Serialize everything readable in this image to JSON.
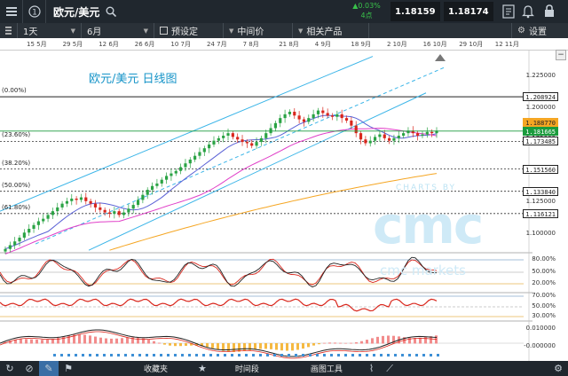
{
  "topbar": {
    "symbol": "欧元/美元",
    "change_pct": "▲0.03%",
    "change_points": "4点",
    "sell_price": "1.18159",
    "buy_price": "1.18174",
    "colors": {
      "sell": "#f0a019",
      "buy": "#2aa344",
      "change": "#39c14a"
    }
  },
  "toolbar": {
    "interval": "1天",
    "range": "6月",
    "preset": "预设定",
    "mid_price": "中间价",
    "related": "相关产品",
    "settings": "设置"
  },
  "date_axis": [
    "15 5月",
    "29 5月",
    "12 6月",
    "26 6月",
    "10 7月",
    "24 7月",
    "7 8月",
    "21 8月",
    "4 9月",
    "18 9月",
    "2 10月",
    "16 10月",
    "29 10月",
    "12 11月"
  ],
  "chart": {
    "title": "欧元/美元 日线图",
    "watermark_small": "CHARTS BY",
    "watermark_brand": "cmc",
    "watermark_sub": "cmc markets",
    "fib_labels": [
      "(0.00%)",
      "(23.60%)",
      "(38.20%)",
      "(50.00%)",
      "(61.80%)"
    ],
    "y_ticks": [
      "1.225000",
      "1.200000",
      "1.175000",
      "1.150000",
      "1.125000",
      "1.100000"
    ],
    "price_tags": {
      "fib0": "1.208924",
      "orange": "1.188770",
      "current": "1.181665",
      "fib236": "1.173485",
      "fib382": "1.151560",
      "fib50": "1.133840",
      "fib618": "1.116121"
    },
    "stoch_ticks": [
      "80.00%",
      "50.00%",
      "20.00%"
    ],
    "rsi_ticks": [
      "70.00%",
      "50.00%",
      "30.00%"
    ],
    "macd_ticks": [
      "0.010000",
      "-0.000000"
    ]
  },
  "chart_data": {
    "type": "candlestick",
    "title": "欧元/美元 日线图",
    "ylim": [
      1.085,
      1.24
    ],
    "fib_levels": [
      {
        "label": "(0.00%)",
        "value": 1.208924
      },
      {
        "label": "(23.60%)",
        "value": 1.173485
      },
      {
        "label": "(38.20%)",
        "value": 1.15156
      },
      {
        "label": "(50.00%)",
        "value": 1.13384
      },
      {
        "label": "(61.80%)",
        "value": 1.116121
      }
    ],
    "current_price": 1.181665,
    "closes": [
      1.088,
      1.091,
      1.094,
      1.097,
      1.101,
      1.104,
      1.107,
      1.11,
      1.112,
      1.115,
      1.118,
      1.121,
      1.124,
      1.126,
      1.128,
      1.127,
      1.129,
      1.126,
      1.124,
      1.121,
      1.119,
      1.117,
      1.116,
      1.118,
      1.115,
      1.117,
      1.12,
      1.123,
      1.127,
      1.131,
      1.135,
      1.138,
      1.14,
      1.143,
      1.146,
      1.148,
      1.15,
      1.153,
      1.156,
      1.159,
      1.162,
      1.165,
      1.168,
      1.171,
      1.174,
      1.176,
      1.178,
      1.18,
      1.177,
      1.175,
      1.173,
      1.172,
      1.17,
      1.173,
      1.176,
      1.18,
      1.184,
      1.188,
      1.192,
      1.195,
      1.197,
      1.194,
      1.191,
      1.189,
      1.192,
      1.195,
      1.198,
      1.196,
      1.194,
      1.193,
      1.195,
      1.192,
      1.19,
      1.186,
      1.18,
      1.175,
      1.172,
      1.174,
      1.177,
      1.179,
      1.176,
      1.174,
      1.176,
      1.178,
      1.18,
      1.182,
      1.18,
      1.178,
      1.179,
      1.181,
      1.18,
      1.182
    ]
  },
  "bottombar": {
    "favorites": "收藏夹",
    "time_interval": "时间段",
    "drawing_tools": "画图工具"
  }
}
